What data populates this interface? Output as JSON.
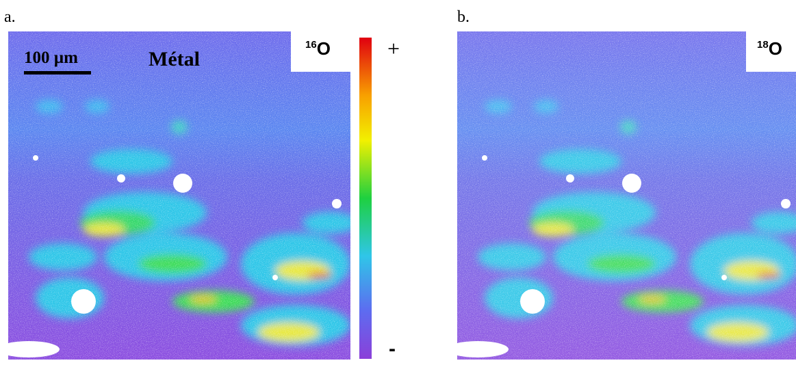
{
  "panels": [
    {
      "label": "a.",
      "isotope": {
        "mass": "16",
        "element": "O"
      },
      "scale_bar": "100 µm",
      "region_label": "Métal",
      "colorbar": {
        "max_label": "+",
        "min_label": "-"
      }
    },
    {
      "label": "b.",
      "isotope": {
        "mass": "18",
        "element": "O"
      }
    }
  ]
}
